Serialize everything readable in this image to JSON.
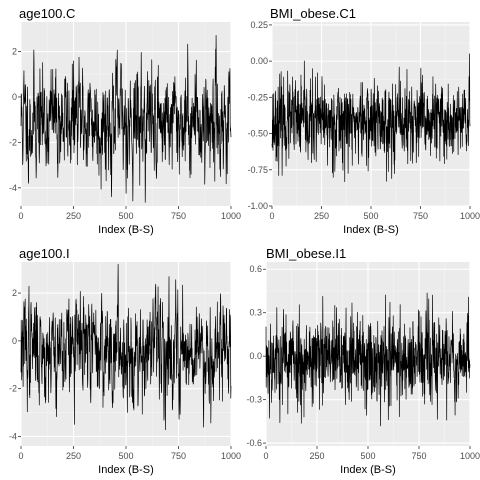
{
  "chart_data": [
    {
      "type": "line",
      "title": "age100.C",
      "xlabel": "Index (B-S)",
      "ylabel": "",
      "xlim": [
        0,
        1000
      ],
      "ylim": [
        -4.8,
        3.3
      ],
      "xticks": [
        0,
        250,
        500,
        750,
        1000
      ],
      "yticks": [
        -4,
        -2,
        0,
        2
      ],
      "ytick_labels": [
        "-4",
        "-2",
        "0",
        "2"
      ],
      "grid": true,
      "series": [
        {
          "values_seed": 11,
          "center": -1.0,
          "spread": 1.2,
          "ar": 0.55,
          "n": 1000,
          "min": -4.7,
          "max": 3.1
        }
      ]
    },
    {
      "type": "line",
      "title": "BMI_obese.C1",
      "xlabel": "Index (B-S)",
      "ylabel": "",
      "xlim": [
        0,
        1000
      ],
      "ylim": [
        -1.0,
        0.27
      ],
      "xticks": [
        0,
        250,
        500,
        750,
        1000
      ],
      "yticks": [
        -1.0,
        -0.75,
        -0.5,
        -0.25,
        0.0,
        0.25
      ],
      "ytick_labels": [
        "-1.00",
        "-0.75",
        "-0.50",
        "-0.25",
        "0.00",
        "0.25"
      ],
      "grid": true,
      "series": [
        {
          "values_seed": 23,
          "center": -0.42,
          "spread": 0.14,
          "ar": 0.2,
          "n": 1000,
          "min": -0.95,
          "max": 0.22
        }
      ]
    },
    {
      "type": "line",
      "title": "age100.I",
      "xlabel": "Index (B-S)",
      "ylabel": "",
      "xlim": [
        0,
        1000
      ],
      "ylim": [
        -4.4,
        3.3
      ],
      "xticks": [
        0,
        250,
        500,
        750,
        1000
      ],
      "yticks": [
        -4,
        -2,
        0,
        2
      ],
      "ytick_labels": [
        "-4",
        "-2",
        "0",
        "2"
      ],
      "grid": true,
      "series": [
        {
          "values_seed": 37,
          "center": -0.3,
          "spread": 1.1,
          "ar": 0.55,
          "n": 1000,
          "min": -4.2,
          "max": 3.2
        }
      ]
    },
    {
      "type": "line",
      "title": "BMI_obese.I1",
      "xlabel": "Index (B-S)",
      "ylabel": "",
      "xlim": [
        0,
        1000
      ],
      "ylim": [
        -0.62,
        0.65
      ],
      "xticks": [
        0,
        250,
        500,
        750,
        1000
      ],
      "yticks": [
        -0.6,
        -0.3,
        0.0,
        0.3,
        0.6
      ],
      "ytick_labels": [
        "-0.6",
        "-0.3",
        "0.0",
        "0.3",
        "0.6"
      ],
      "grid": true,
      "series": [
        {
          "values_seed": 53,
          "center": -0.02,
          "spread": 0.16,
          "ar": 0.15,
          "n": 1000,
          "min": -0.58,
          "max": 0.6
        }
      ]
    }
  ]
}
